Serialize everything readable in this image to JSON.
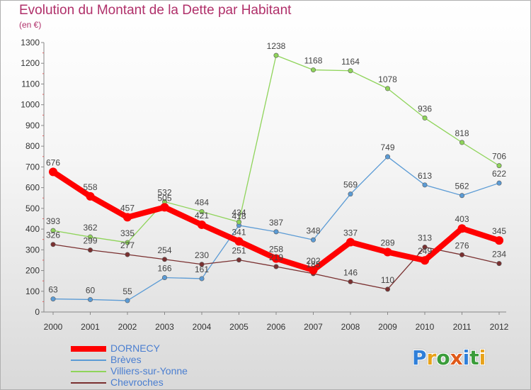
{
  "title": "Evolution du Montant de la Dette par Habitant",
  "subtitle": "(en €)",
  "logo": {
    "letters": [
      {
        "ch": "P",
        "color": "#2f7fd9"
      },
      {
        "ch": "r",
        "color": "#e8a21a"
      },
      {
        "ch": "o",
        "color": "#3a9c3a"
      },
      {
        "ch": "x",
        "color": "#e05a1a"
      },
      {
        "ch": "i",
        "color": "#2f7fd9"
      },
      {
        "ch": "t",
        "color": "#3a9c3a"
      },
      {
        "ch": "i",
        "color": "#e8a21a"
      }
    ]
  },
  "chart_data": {
    "type": "line",
    "title": "Evolution du Montant de la Dette par Habitant",
    "subtitle": "(en €)",
    "x": [
      "2000",
      "2001",
      "2002",
      "2003",
      "2004",
      "2005",
      "2006",
      "2007",
      "2008",
      "2009",
      "2010",
      "2011",
      "2012"
    ],
    "ylim": [
      0,
      1300
    ],
    "ytick_step": 100,
    "grid": false,
    "legend_position": "bottom-left",
    "series": [
      {
        "name": "DORNECY",
        "color": "#ff0000",
        "highlight": true,
        "values": [
          676,
          558,
          457,
          505,
          421,
          341,
          258,
          202,
          337,
          289,
          249,
          403,
          345
        ],
        "labels": [
          "676",
          "558",
          "457",
          "505",
          "421",
          "341",
          "258",
          "202",
          "337",
          "289",
          "249",
          "403",
          "345"
        ]
      },
      {
        "name": "Brèves",
        "color": "#5b9bd5",
        "values": [
          63,
          60,
          55,
          166,
          161,
          418,
          387,
          348,
          569,
          749,
          613,
          562,
          622
        ],
        "labels": [
          "63",
          "60",
          "55",
          "166",
          "161",
          "418",
          "387",
          "348",
          "569",
          "749",
          "613",
          "562",
          "622"
        ]
      },
      {
        "name": "Villiers-sur-Yonne",
        "color": "#8fd45a",
        "values": [
          393,
          362,
          335,
          532,
          484,
          434,
          1238,
          1168,
          1164,
          1078,
          936,
          818,
          706
        ],
        "labels": [
          "393",
          "362",
          "335",
          "532",
          "484",
          "434",
          "1238",
          "1168",
          "1164",
          "1078",
          "936",
          "818",
          "706"
        ]
      },
      {
        "name": "Chevroches",
        "color": "#7a3030",
        "values": [
          326,
          299,
          277,
          254,
          230,
          251,
          219,
          185,
          146,
          110,
          313,
          276,
          234
        ],
        "labels": [
          "326",
          "299",
          "277",
          "254",
          "230",
          "251",
          "219",
          "185",
          "146",
          "110",
          "313",
          "276",
          "234"
        ]
      }
    ]
  }
}
